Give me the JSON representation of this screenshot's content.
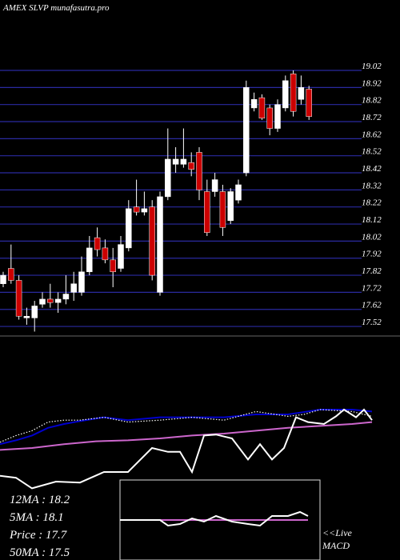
{
  "chart_data": [
    {
      "type": "candlestick",
      "title": "AMEX  SLVP munafasutra.pro",
      "up_color": "#ffffff",
      "down_color": "#cc0000",
      "grid": true,
      "grid_color": "#2a2aa0",
      "ylim": [
        17.45,
        19.02
      ],
      "yticks": [
        17.52,
        17.62,
        17.72,
        17.82,
        17.92,
        18.02,
        18.12,
        18.22,
        18.32,
        18.42,
        18.52,
        18.62,
        18.72,
        18.82,
        18.92,
        19.02
      ],
      "open": [
        17.77,
        17.86,
        17.79,
        17.57,
        17.57,
        17.65,
        17.68,
        17.66,
        17.68,
        17.72,
        17.72,
        17.84,
        18.04,
        17.98,
        17.91,
        17.86,
        17.98,
        18.22,
        18.19,
        18.22,
        17.72,
        18.28,
        18.47,
        18.47,
        18.48,
        18.54,
        18.31,
        18.31,
        18.31,
        18.14,
        18.26,
        18.42,
        18.8,
        18.86,
        18.8,
        18.68,
        18.8,
        19.0,
        18.85,
        18.91
      ],
      "high": [
        17.84,
        18.0,
        17.82,
        17.63,
        17.67,
        17.72,
        17.77,
        17.72,
        17.82,
        17.84,
        17.93,
        18.05,
        18.1,
        18.03,
        17.98,
        18.05,
        18.26,
        18.38,
        18.31,
        18.26,
        18.31,
        18.68,
        18.57,
        18.68,
        18.54,
        18.57,
        18.38,
        18.42,
        18.35,
        18.33,
        18.38,
        18.96,
        18.89,
        18.88,
        18.82,
        18.85,
        18.99,
        19.02,
        18.99,
        18.93
      ],
      "low": [
        17.75,
        17.77,
        17.56,
        17.53,
        17.49,
        17.63,
        17.63,
        17.6,
        17.65,
        17.67,
        17.7,
        17.82,
        17.93,
        17.89,
        17.75,
        17.84,
        17.96,
        18.17,
        18.17,
        17.79,
        17.7,
        18.26,
        18.42,
        18.45,
        18.4,
        18.26,
        18.05,
        18.28,
        18.05,
        18.12,
        18.24,
        18.4,
        18.78,
        18.73,
        18.64,
        18.66,
        18.78,
        18.75,
        18.82,
        18.73
      ],
      "close": [
        17.82,
        17.79,
        17.58,
        17.58,
        17.64,
        17.68,
        17.66,
        17.68,
        17.71,
        17.77,
        17.84,
        17.98,
        17.97,
        17.91,
        17.84,
        18.0,
        18.21,
        18.19,
        18.21,
        17.82,
        18.28,
        18.5,
        18.5,
        18.5,
        18.44,
        18.32,
        18.07,
        18.38,
        18.1,
        18.31,
        18.35,
        18.92,
        18.85,
        18.74,
        18.68,
        18.82,
        18.96,
        18.78,
        18.92,
        18.75
      ]
    },
    {
      "type": "line",
      "xlim": [
        0,
        500
      ],
      "ylim": [
        0,
        100
      ],
      "series": [
        {
          "color": "#0000cc",
          "style": "solid",
          "x": [
            0,
            20,
            40,
            60,
            80,
            100,
            130,
            160,
            200,
            240,
            280,
            320,
            360,
            400,
            440,
            465
          ],
          "values": [
            54,
            58,
            63,
            71,
            75,
            78,
            82,
            79,
            82,
            82,
            82,
            85,
            85,
            90,
            90,
            88
          ]
        },
        {
          "color": "#ffffff",
          "style": "dotted",
          "x": [
            0,
            20,
            40,
            60,
            80,
            100,
            130,
            160,
            200,
            240,
            280,
            320,
            360,
            380,
            400,
            440,
            465
          ],
          "values": [
            56,
            63,
            68,
            77,
            79,
            79,
            82,
            77,
            79,
            82,
            79,
            88,
            83,
            85,
            90,
            88,
            83
          ]
        },
        {
          "color": "#cc66cc",
          "style": "solid",
          "x": [
            0,
            40,
            80,
            120,
            160,
            200,
            240,
            280,
            320,
            360,
            400,
            440,
            465
          ],
          "values": [
            48,
            50,
            54,
            57,
            58,
            60,
            63,
            65,
            68,
            71,
            73,
            75,
            77
          ]
        },
        {
          "color": "#ffffff",
          "style": "solid",
          "x": [
            0,
            20,
            40,
            70,
            100,
            130,
            160,
            190,
            210,
            225,
            240,
            255,
            270,
            290,
            310,
            325,
            340,
            355,
            370,
            385,
            405,
            420,
            430,
            445,
            455,
            465
          ],
          "values": [
            21,
            19,
            8,
            15,
            14,
            25,
            25,
            50,
            46,
            46,
            25,
            63,
            64,
            60,
            38,
            54,
            38,
            50,
            82,
            77,
            75,
            83,
            90,
            82,
            90,
            79
          ]
        }
      ],
      "annotations": [
        "12MA : 18.2",
        "5MA : 18.1",
        "Price   : 17.7",
        "50MA : 17.5"
      ]
    },
    {
      "type": "line",
      "xlim": [
        150,
        400
      ],
      "ylim": [
        -5,
        5
      ],
      "series": [
        {
          "color": "#cc66cc",
          "style": "solid",
          "x": [
            150,
            385
          ],
          "values": [
            0,
            0
          ]
        },
        {
          "color": "#ffffff",
          "style": "solid",
          "x": [
            150,
            200,
            210,
            225,
            240,
            255,
            270,
            290,
            310,
            325,
            340,
            360,
            375,
            385
          ],
          "values": [
            0,
            0,
            -0.7,
            -0.5,
            0.2,
            -0.2,
            0.5,
            -0.2,
            -0.5,
            -0.7,
            0.5,
            0.5,
            1.0,
            0.5
          ]
        }
      ],
      "annotations": [
        "<<Live",
        "MACD"
      ]
    }
  ]
}
